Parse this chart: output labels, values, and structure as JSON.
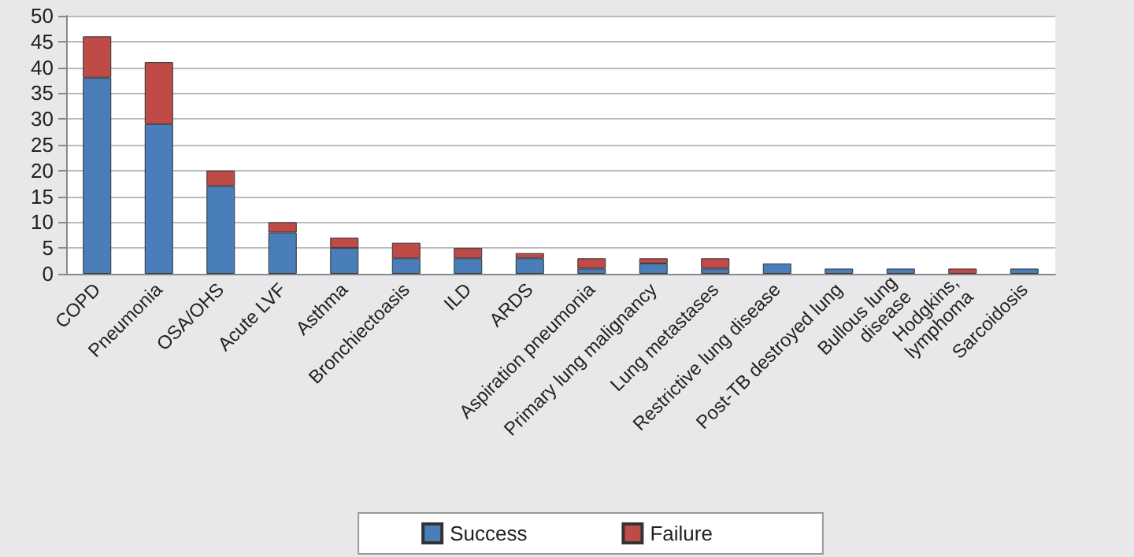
{
  "chart_data": {
    "type": "bar",
    "stacked": true,
    "categories": [
      "COPD",
      "Pneumonia",
      "OSA/OHS",
      "Acute LVF",
      "Asthma",
      "Bronchiectoasis",
      "ILD",
      "ARDS",
      "Aspiration pneumonia",
      "Primary lung malignancy",
      "Lung metastases",
      "Restrictive lung disease",
      "Post-TB destroyed lung",
      "Bullous lung\ndisease",
      "Hodgkins,\nlymphoma",
      "Sarcoidosis"
    ],
    "series": [
      {
        "name": "Success",
        "color": "#4a7ebb",
        "values": [
          38,
          29,
          17,
          8,
          5,
          3,
          3,
          3,
          1,
          2,
          1,
          2,
          1,
          1,
          0,
          1
        ]
      },
      {
        "name": "Failure",
        "color": "#be4b48",
        "values": [
          8,
          12,
          3,
          2,
          2,
          3,
          2,
          1,
          2,
          1,
          2,
          0,
          0,
          0,
          1,
          0
        ]
      }
    ],
    "ylim": [
      0,
      50
    ],
    "yticks": [
      0,
      5,
      10,
      15,
      20,
      25,
      30,
      35,
      40,
      45,
      50
    ],
    "grid": "y",
    "legend": "bottom"
  }
}
